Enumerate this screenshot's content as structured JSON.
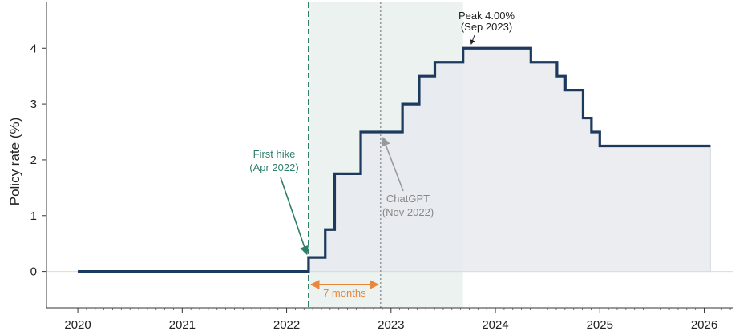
{
  "chart_data": {
    "type": "line",
    "ylabel": "Policy rate (%)",
    "xlabel": "",
    "xlim": [
      2020.0,
      2026.2
    ],
    "ylim": [
      -0.65,
      4.82
    ],
    "x_ticks": [
      2020,
      2021,
      2022,
      2023,
      2024,
      2025,
      2026
    ],
    "x_tick_labels": [
      "2020",
      "2021",
      "2022",
      "2023",
      "2024",
      "2025",
      "2026"
    ],
    "y_ticks": [
      0,
      1,
      2,
      3,
      4
    ],
    "y_tick_labels": [
      "0",
      "1",
      "2",
      "3",
      "4"
    ],
    "series": [
      {
        "values": [
          {
            "x": 2020.0,
            "y": 0.0
          },
          {
            "x": 2022.21,
            "y": 0.25
          },
          {
            "x": 2022.37,
            "y": 0.75
          },
          {
            "x": 2022.46,
            "y": 1.75
          },
          {
            "x": 2022.71,
            "y": 2.5
          },
          {
            "x": 2022.9,
            "y": 2.5
          },
          {
            "x": 2023.11,
            "y": 3.0
          },
          {
            "x": 2023.27,
            "y": 3.5
          },
          {
            "x": 2023.42,
            "y": 3.75
          },
          {
            "x": 2023.69,
            "y": 4.0
          },
          {
            "x": 2024.34,
            "y": 3.75
          },
          {
            "x": 2024.59,
            "y": 3.5
          },
          {
            "x": 2024.67,
            "y": 3.25
          },
          {
            "x": 2024.84,
            "y": 2.75
          },
          {
            "x": 2024.92,
            "y": 2.5
          },
          {
            "x": 2025.0,
            "y": 2.25
          },
          {
            "x": 2026.06,
            "y": 2.25
          }
        ]
      }
    ],
    "markers": {
      "first_hike_x": 2022.21,
      "chatgpt_x": 2022.9,
      "peak_x": 2023.69,
      "peak_y": 4.0
    },
    "annotations": {
      "first_hike": [
        "First hike",
        "(Apr 2022)"
      ],
      "chatgpt": [
        "ChatGPT",
        "(Nov 2022)"
      ],
      "peak": [
        "Peak 4.00%",
        "(Sep 2023)"
      ],
      "months": "7 months"
    },
    "colors": {
      "line": "#1c3a5e",
      "fill": "#e8eaef",
      "shade": "#ebf2ef",
      "first_hike": "#2e7d6b",
      "chatgpt": "#999999",
      "months": "#e8873a",
      "peak": "#222222"
    },
    "grid": false
  }
}
